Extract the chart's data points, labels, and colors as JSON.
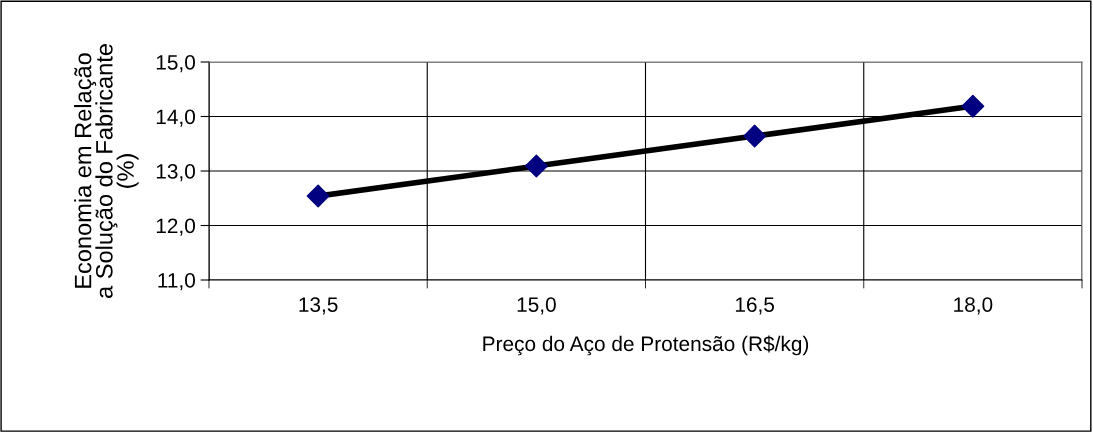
{
  "chart_data": {
    "type": "line",
    "xlabel": "Preço do Aço de Protensão (R$/kg)",
    "ylabel": "Economia em Relação\na Solução do Fabricante\n(%)",
    "categories": [
      "13,5",
      "15,0",
      "16,5",
      "18,0"
    ],
    "series": [
      {
        "color": "#000000",
        "colors": [
          "#000080",
          "#000080",
          "#000080",
          "#000080"
        ],
        "values": [
          12.54,
          13.09,
          13.64,
          14.19
        ]
      }
    ],
    "ylim": [
      11,
      15
    ],
    "yticks": [
      {
        "value": 11,
        "label": "11,0"
      },
      {
        "value": 12,
        "label": "12,0"
      },
      {
        "value": 13,
        "label": "13,0"
      },
      {
        "value": 14,
        "label": "14,0"
      },
      {
        "value": 15,
        "label": "15,0"
      }
    ],
    "grid": true,
    "marker": "diamond",
    "line_style": "solid",
    "legend": false
  }
}
